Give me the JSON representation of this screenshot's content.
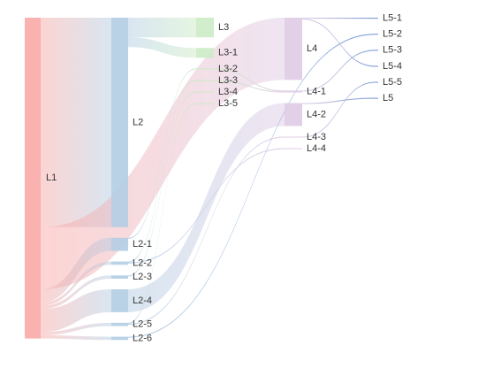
{
  "chart_data": {
    "type": "sankey",
    "nodes": [
      {
        "name": "L1",
        "color": "#f9aaa7"
      },
      {
        "name": "L2",
        "color": "#b3cde3"
      },
      {
        "name": "L2-1",
        "color": "#b3cde3"
      },
      {
        "name": "L2-2",
        "color": "#b3cde3"
      },
      {
        "name": "L2-3",
        "color": "#b3cde3"
      },
      {
        "name": "L2-4",
        "color": "#b3cde3"
      },
      {
        "name": "L2-5",
        "color": "#b3cde3"
      },
      {
        "name": "L2-6",
        "color": "#b3cde3"
      },
      {
        "name": "L3",
        "color": "#ccebc5"
      },
      {
        "name": "L3-1",
        "color": "#ccebc5"
      },
      {
        "name": "L3-2",
        "color": "#ccebc5"
      },
      {
        "name": "L3-3",
        "color": "#ccebc5"
      },
      {
        "name": "L3-4",
        "color": "#ccebc5"
      },
      {
        "name": "L3-5",
        "color": "#ccebc5"
      },
      {
        "name": "L4",
        "color": "#decbe4"
      },
      {
        "name": "L4-1",
        "color": "#decbe4"
      },
      {
        "name": "L4-2",
        "color": "#decbe4"
      },
      {
        "name": "L4-3",
        "color": "#decbe4"
      },
      {
        "name": "L4-4",
        "color": "#decbe4"
      },
      {
        "name": "L5-1",
        "color": "#6f8fd0"
      },
      {
        "name": "L5-2",
        "color": "#6f8fd0"
      },
      {
        "name": "L5-3",
        "color": "#6f8fd0"
      },
      {
        "name": "L5-4",
        "color": "#6f8fd0"
      },
      {
        "name": "L5-5",
        "color": "#6f8fd0"
      },
      {
        "name": "L5",
        "color": "#6f8fd0"
      }
    ],
    "links": [
      {
        "source": "L1",
        "target": "L2",
        "value": 64
      },
      {
        "source": "L1",
        "target": "L4",
        "value": 19
      },
      {
        "source": "L1",
        "target": "L2-1",
        "value": 4
      },
      {
        "source": "L1",
        "target": "L2-2",
        "value": 1
      },
      {
        "source": "L1",
        "target": "L2-3",
        "value": 1
      },
      {
        "source": "L1",
        "target": "L2-4",
        "value": 7
      },
      {
        "source": "L1",
        "target": "L2-5",
        "value": 1
      },
      {
        "source": "L1",
        "target": "L2-6",
        "value": 1
      },
      {
        "source": "L2",
        "target": "L3",
        "value": 6
      },
      {
        "source": "L2",
        "target": "L3-1",
        "value": 3
      },
      {
        "source": "L2-1",
        "target": "L3-2",
        "value": 0.3
      },
      {
        "source": "L2-2",
        "target": "L3-3",
        "value": 0.3
      },
      {
        "source": "L2-3",
        "target": "L3-4",
        "value": 0.3
      },
      {
        "source": "L2-5",
        "target": "L3-5",
        "value": 0.3
      },
      {
        "source": "L2-4",
        "target": "L4-2",
        "value": 7
      },
      {
        "source": "L2-5",
        "target": "L4-3",
        "value": 0.3
      },
      {
        "source": "L2-2",
        "target": "L4-4",
        "value": 0.3
      },
      {
        "source": "L3-2",
        "target": "L4-1",
        "value": 0.3
      },
      {
        "source": "L3-3",
        "target": "L4-1",
        "value": 0.3
      },
      {
        "source": "L2-6",
        "target": "L5-2",
        "value": 0.3
      },
      {
        "source": "L4",
        "target": "L5-1",
        "value": 0.3
      },
      {
        "source": "L4",
        "target": "L5-4",
        "value": 0.3
      },
      {
        "source": "L4-1",
        "target": "L5-3",
        "value": 0.3
      },
      {
        "source": "L4-3",
        "target": "L5-5",
        "value": 0.3
      },
      {
        "source": "L4-2",
        "target": "L5",
        "value": 0.3
      }
    ]
  }
}
